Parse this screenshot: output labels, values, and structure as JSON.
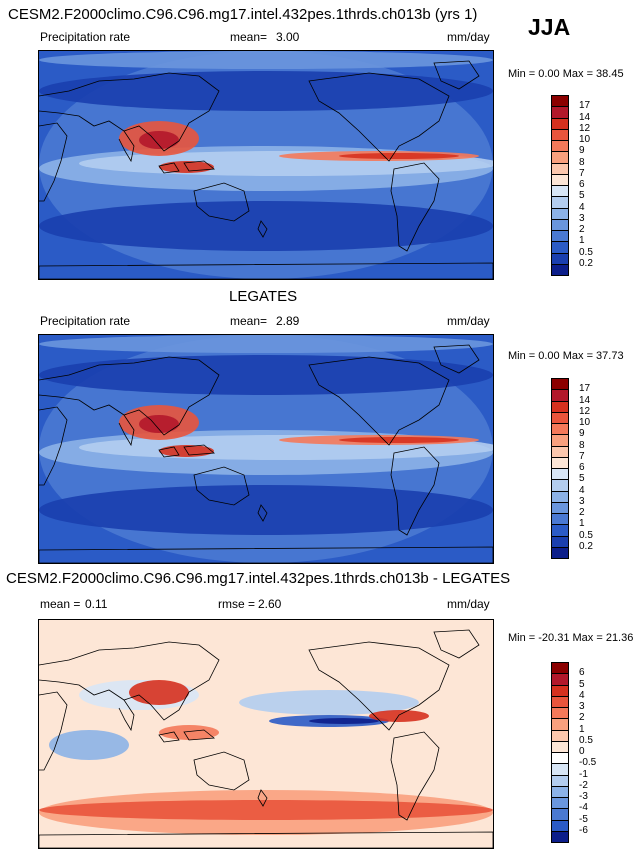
{
  "header": {
    "title": "CESM2.F2000climo.C96.C96.mg17.intel.432pes.1thrds.ch013b (yrs 1)",
    "season": "JJA"
  },
  "panels": [
    {
      "title": "",
      "left_label": "Precipitation rate",
      "mean_label": "mean=",
      "mean_value": "3.00",
      "units": "mm/day",
      "minmax": "Min =   0.00 Max =  38.45",
      "colorbar_levels": [
        "17",
        "14",
        "12",
        "10",
        "9",
        "8",
        "7",
        "6",
        "5",
        "4",
        "3",
        "2",
        "1",
        "0.5",
        "0.2"
      ],
      "colorbar_colors": [
        "#8b0000",
        "#b2182b",
        "#d6311f",
        "#e9553c",
        "#f4795a",
        "#f9a07e",
        "#fcc7ad",
        "#fde6d6",
        "#d8e6f6",
        "#b3cdef",
        "#8cb2e7",
        "#6a96dd",
        "#4a79d2",
        "#2b5bc6",
        "#1a3fae",
        "#0c1e8a"
      ],
      "type": "precip"
    },
    {
      "title": "LEGATES",
      "left_label": "Precipitation rate",
      "mean_label": "mean=",
      "mean_value": "2.89",
      "units": "mm/day",
      "minmax": "Min =   0.00 Max =  37.73",
      "colorbar_levels": [
        "17",
        "14",
        "12",
        "10",
        "9",
        "8",
        "7",
        "6",
        "5",
        "4",
        "3",
        "2",
        "1",
        "0.5",
        "0.2"
      ],
      "colorbar_colors": [
        "#8b0000",
        "#b2182b",
        "#d6311f",
        "#e9553c",
        "#f4795a",
        "#f9a07e",
        "#fcc7ad",
        "#fde6d6",
        "#d8e6f6",
        "#b3cdef",
        "#8cb2e7",
        "#6a96dd",
        "#4a79d2",
        "#2b5bc6",
        "#1a3fae",
        "#0c1e8a"
      ],
      "type": "precip"
    },
    {
      "title": "CESM2.F2000climo.C96.C96.mg17.intel.432pes.1thrds.ch013b - LEGATES",
      "mean_label": "mean =",
      "mean_value": "0.11",
      "rmse_label": "rmse =",
      "rmse_value": "2.60",
      "units": "mm/day",
      "minmax": "Min = -20.31 Max =  21.36",
      "colorbar_levels": [
        "6",
        "5",
        "4",
        "3",
        "2",
        "1",
        "0.5",
        "0",
        "-0.5",
        "-1",
        "-2",
        "-3",
        "-4",
        "-5",
        "-6"
      ],
      "colorbar_colors": [
        "#8b0000",
        "#b2182b",
        "#d6311f",
        "#e9553c",
        "#f4795a",
        "#f9a07e",
        "#fcc7ad",
        "#fde6d6",
        "#ffffff",
        "#d8e6f6",
        "#b3cdef",
        "#8cb2e7",
        "#6a96dd",
        "#4a79d2",
        "#2b5bc6",
        "#0c1e8a"
      ],
      "type": "diff"
    }
  ]
}
